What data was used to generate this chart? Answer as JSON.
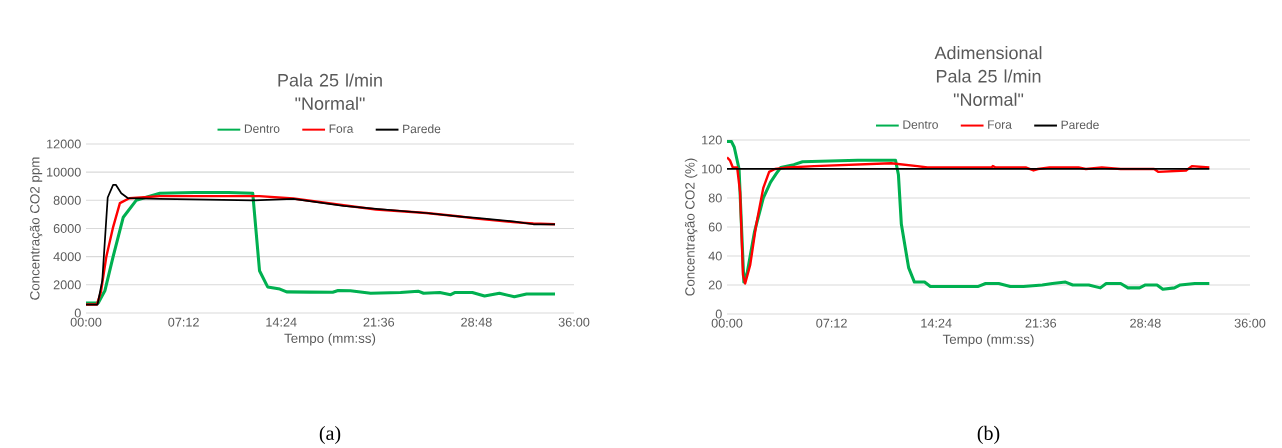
{
  "chart_data": [
    {
      "type": "line",
      "title": "Pala 25 l/min",
      "subtitle": "\"Normal\"",
      "xlabel": "Tempo (mm:ss)",
      "ylabel": "Concentração CO2 ppm",
      "annotations": [
        "(a)"
      ],
      "xlim": [
        0,
        36
      ],
      "xticks": [
        {
          "value": 0,
          "label": "00:00"
        },
        {
          "value": 7.2,
          "label": "07:12"
        },
        {
          "value": 14.4,
          "label": "14:24"
        },
        {
          "value": 21.6,
          "label": "21:36"
        },
        {
          "value": 28.8,
          "label": "28:48"
        },
        {
          "value": 36,
          "label": "36:00"
        }
      ],
      "ylim": [
        0,
        12000
      ],
      "yticks": [
        0,
        2000,
        4000,
        6000,
        8000,
        10000,
        12000
      ],
      "grid": "y",
      "legend": "top",
      "series": [
        {
          "name": "Dentro",
          "color": "#00b050",
          "x": [
            0,
            0.9,
            1.4,
            2.0,
            2.75,
            3.7,
            5.45,
            8.0,
            10.5,
            12.3,
            12.8,
            13.4,
            14.3,
            14.8,
            16.5,
            18.2,
            18.6,
            19.5,
            21.0,
            23.2,
            24.5,
            24.9,
            26.1,
            26.9,
            27.2,
            28.5,
            29.4,
            30.5,
            31.6,
            32.5,
            34.6
          ],
          "values": [
            700,
            700,
            1600,
            4000,
            6800,
            8000,
            8500,
            8550,
            8550,
            8500,
            3000,
            1850,
            1700,
            1500,
            1480,
            1470,
            1600,
            1580,
            1400,
            1450,
            1550,
            1400,
            1450,
            1300,
            1450,
            1450,
            1200,
            1400,
            1150,
            1350,
            1350
          ]
        },
        {
          "name": "Fora",
          "color": "#ff0000",
          "x": [
            0,
            0.8,
            1.1,
            1.5,
            2.0,
            2.5,
            3.2,
            5.45,
            9.0,
            12.8,
            15.3,
            19.0,
            21.4,
            25.1,
            27.6,
            28.8,
            31.5,
            33.0,
            34.6
          ],
          "values": [
            600,
            600,
            1500,
            4000,
            6100,
            7800,
            8150,
            8300,
            8300,
            8300,
            8130,
            7650,
            7350,
            7100,
            6850,
            6700,
            6450,
            6350,
            6300
          ]
        },
        {
          "name": "Parede",
          "color": "#000000",
          "x": [
            0,
            0.85,
            1.2,
            1.6,
            2.0,
            2.2,
            2.6,
            3.1,
            5.45,
            9.0,
            12.3,
            15.3,
            19.0,
            21.4,
            25.1,
            27.6,
            28.8,
            31.5,
            33.0,
            34.6
          ],
          "values": [
            600,
            600,
            2300,
            8200,
            9100,
            9100,
            8500,
            8150,
            8100,
            8050,
            8000,
            8100,
            7600,
            7400,
            7100,
            6850,
            6750,
            6500,
            6300,
            6300
          ]
        }
      ]
    },
    {
      "type": "line",
      "title": "Adimensional",
      "subtitle": "Pala 25 l/min \"Normal\"",
      "xlabel": "Tempo (mm:ss)",
      "ylabel": "Concentração CO2 (%)",
      "annotations": [
        "(b)"
      ],
      "xlim": [
        0,
        36
      ],
      "xticks": [
        {
          "value": 0,
          "label": "00:00"
        },
        {
          "value": 7.2,
          "label": "07:12"
        },
        {
          "value": 14.4,
          "label": "14:24"
        },
        {
          "value": 21.6,
          "label": "21:36"
        },
        {
          "value": 28.8,
          "label": "28:48"
        },
        {
          "value": 36,
          "label": "36:00"
        }
      ],
      "ylim": [
        0,
        120
      ],
      "yticks": [
        0,
        20,
        40,
        60,
        80,
        100,
        120
      ],
      "grid": "y",
      "legend": "top",
      "series": [
        {
          "name": "Dentro",
          "color": "#00b050",
          "x": [
            0,
            0.3,
            0.5,
            0.83,
            1.16,
            1.4,
            1.9,
            2.5,
            3.0,
            3.4,
            3.7,
            4.6,
            5.2,
            9.0,
            11.6,
            11.8,
            12.0,
            12.5,
            12.9,
            13.6,
            14.0,
            15.1,
            17.3,
            17.8,
            18.7,
            19.5,
            20.4,
            21.7,
            22.4,
            23.3,
            23.8,
            24.9,
            25.7,
            26.1,
            27.1,
            27.6,
            28.4,
            28.8,
            29.6,
            30.0,
            30.8,
            31.2,
            32.2,
            33.2
          ],
          "values": [
            119,
            119,
            115,
            100,
            22,
            29,
            57,
            80,
            91,
            97,
            101,
            103,
            105,
            106,
            106,
            96,
            62,
            32,
            22,
            22,
            19,
            19,
            19,
            21,
            21,
            19,
            19,
            20,
            21,
            22,
            20,
            20,
            18,
            21,
            21,
            18,
            18,
            20,
            20,
            17,
            18,
            20,
            21,
            21
          ]
        },
        {
          "name": "Fora",
          "color": "#ff0000",
          "x": [
            0,
            0.2,
            0.4,
            0.7,
            0.9,
            1.1,
            1.25,
            1.6,
            2.0,
            2.5,
            2.9,
            3.3,
            4.2,
            6.0,
            11.3,
            13.1,
            13.8,
            18.2,
            18.3,
            18.5,
            20.6,
            21.1,
            21.4,
            22.2,
            24.2,
            24.7,
            25.8,
            27.1,
            29.4,
            29.7,
            31.6,
            32.0,
            33.2
          ],
          "values": [
            108,
            106,
            101,
            101,
            84,
            27,
            21,
            34,
            61,
            87,
            98,
            100,
            101,
            102,
            104,
            102,
            101,
            101,
            102,
            101,
            101,
            99,
            100,
            101,
            101,
            100,
            101,
            100,
            100,
            98,
            99,
            102,
            101
          ]
        },
        {
          "name": "Parede",
          "color": "#000000",
          "x": [
            0,
            33.2
          ],
          "values": [
            100,
            100
          ]
        }
      ]
    }
  ]
}
